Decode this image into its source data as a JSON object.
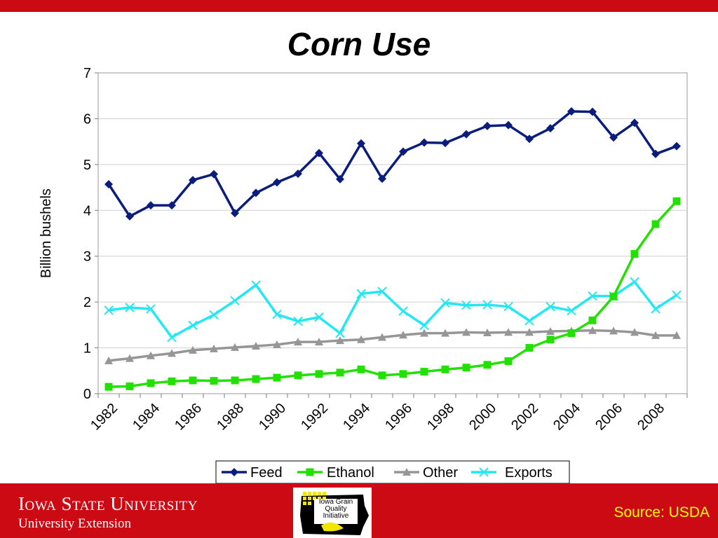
{
  "slide": {
    "title": "Corn Use"
  },
  "footer": {
    "university": "Iowa State University",
    "extension": "University Extension",
    "logo_text": "Iowa Grain Quality Initiative",
    "source": "Source: USDA"
  },
  "colors": {
    "feed": "#0a1c7c",
    "ethanol": "#22e000",
    "other": "#969696",
    "exports": "#22e8f4",
    "accent": "#cc0a14"
  },
  "chart_data": {
    "type": "line",
    "title": "Corn Use",
    "ylabel": "Billion bushels",
    "xlabel": "",
    "ylim": [
      0,
      7
    ],
    "yticks": [
      "0",
      "1",
      "2",
      "3",
      "4",
      "5",
      "6",
      "7"
    ],
    "x": [
      1982,
      1983,
      1984,
      1985,
      1986,
      1987,
      1988,
      1989,
      1990,
      1991,
      1992,
      1993,
      1994,
      1995,
      1996,
      1997,
      1998,
      1999,
      2000,
      2001,
      2002,
      2003,
      2004,
      2005,
      2006,
      2007,
      2008,
      2009
    ],
    "xtick_labels": [
      "1982",
      "1984",
      "1986",
      "1988",
      "1990",
      "1992",
      "1994",
      "1996",
      "1998",
      "2000",
      "2002",
      "2004",
      "2006",
      "2008"
    ],
    "legend_position": "bottom",
    "grid": true,
    "series": [
      {
        "name": "Feed",
        "marker": "diamond",
        "values": [
          4.57,
          3.87,
          4.11,
          4.11,
          4.66,
          4.79,
          3.94,
          4.38,
          4.61,
          4.8,
          5.25,
          4.68,
          5.46,
          4.69,
          5.28,
          5.48,
          5.47,
          5.66,
          5.84,
          5.86,
          5.56,
          5.79,
          6.16,
          6.15,
          5.59,
          5.91,
          5.23,
          5.4
        ]
      },
      {
        "name": "Ethanol",
        "marker": "square",
        "values": [
          0.15,
          0.16,
          0.23,
          0.27,
          0.29,
          0.28,
          0.29,
          0.32,
          0.35,
          0.4,
          0.43,
          0.46,
          0.53,
          0.4,
          0.43,
          0.48,
          0.53,
          0.57,
          0.63,
          0.71,
          1.0,
          1.18,
          1.32,
          1.6,
          2.12,
          3.05,
          3.7,
          4.2
        ]
      },
      {
        "name": "Other",
        "marker": "triangle",
        "values": [
          0.72,
          0.77,
          0.83,
          0.88,
          0.95,
          0.98,
          1.01,
          1.04,
          1.07,
          1.13,
          1.13,
          1.16,
          1.18,
          1.23,
          1.28,
          1.32,
          1.32,
          1.34,
          1.33,
          1.34,
          1.34,
          1.36,
          1.37,
          1.38,
          1.37,
          1.34,
          1.27,
          1.27
        ]
      },
      {
        "name": "Exports",
        "marker": "x",
        "values": [
          1.82,
          1.88,
          1.85,
          1.23,
          1.49,
          1.72,
          2.03,
          2.37,
          1.73,
          1.58,
          1.67,
          1.32,
          2.18,
          2.23,
          1.8,
          1.49,
          1.98,
          1.93,
          1.94,
          1.9,
          1.59,
          1.9,
          1.81,
          2.13,
          2.13,
          2.44,
          1.85,
          2.15
        ]
      }
    ]
  }
}
